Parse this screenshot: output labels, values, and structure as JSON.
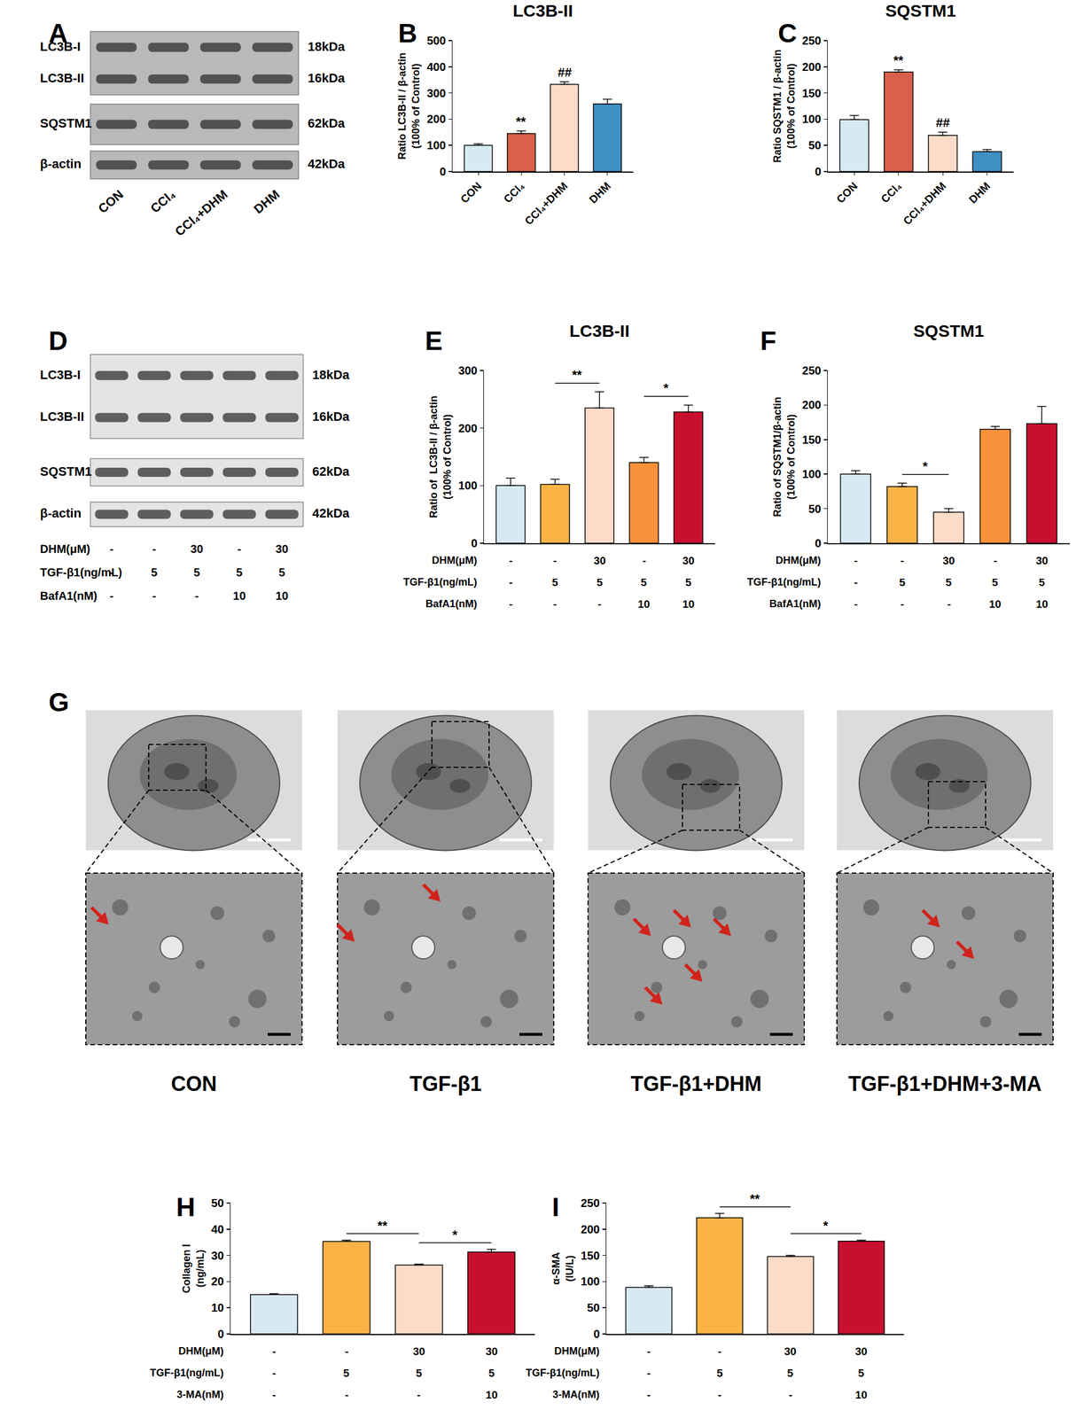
{
  "chart_data": [
    {
      "panel": "B",
      "type": "bar",
      "title": "LC3B-II",
      "y_label": "Ratio LC3B-II / β-actin\n(100% of Control)",
      "categories": [
        "CON",
        "CCl₄",
        "CCl₄+DHM",
        "DHM"
      ],
      "values": [
        100,
        145,
        333,
        258
      ],
      "errors": [
        6,
        10,
        10,
        18
      ],
      "colors": [
        "#d6e9f5",
        "#d9604a",
        "#fcdcc8",
        "#3f8fc4"
      ],
      "ylim": [
        0,
        500
      ],
      "yticks": [
        0,
        100,
        200,
        300,
        400,
        500
      ],
      "annotations": [
        {
          "text": "**",
          "category": "CCl₄"
        },
        {
          "text": "##",
          "category": "CCl₄+DHM"
        }
      ]
    },
    {
      "panel": "C",
      "type": "bar",
      "title": "SQSTM1",
      "y_label": "Ratio SQSTM1 / β-actin\n(100% of Control)",
      "categories": [
        "CON",
        "CCl₄",
        "CCl₄+DHM",
        "DHM"
      ],
      "values": [
        99,
        190,
        69,
        38
      ],
      "errors": [
        8,
        4,
        6,
        4
      ],
      "colors": [
        "#d6e9f5",
        "#d9604a",
        "#fcdcc8",
        "#3f8fc4"
      ],
      "ylim": [
        0,
        250
      ],
      "yticks": [
        0,
        50,
        100,
        150,
        200,
        250
      ],
      "annotations": [
        {
          "text": "**",
          "category": "CCl₄"
        },
        {
          "text": "##",
          "category": "CCl₄+DHM"
        }
      ]
    },
    {
      "panel": "E",
      "type": "bar",
      "title": "LC3B-II",
      "y_label": "Ratio of  LC3B-II / β-actin\n(100% of Control)",
      "categories": [
        null,
        null,
        null,
        null,
        null
      ],
      "values": [
        100,
        102,
        235,
        140,
        228
      ],
      "errors": [
        13,
        9,
        28,
        9,
        12
      ],
      "colors": [
        "#d6e9f5",
        "#fbb346",
        "#fcdcc8",
        "#f9913a",
        "#c8102e"
      ],
      "ylim": [
        0,
        300
      ],
      "yticks": [
        0,
        100,
        200,
        300
      ],
      "brackets": [
        {
          "from": 1,
          "to": 2,
          "text": "**"
        },
        {
          "from": 3,
          "to": 4,
          "text": "*"
        }
      ],
      "conditions": [
        {
          "label": "DHM(μM)",
          "values": [
            "-",
            "-",
            "30",
            "-",
            "30"
          ]
        },
        {
          "label": "TGF-β1(ng/mL)",
          "values": [
            "-",
            "5",
            "5",
            "5",
            "5"
          ]
        },
        {
          "label": "BafA1(nM)",
          "values": [
            "-",
            "-",
            "-",
            "10",
            "10"
          ]
        }
      ]
    },
    {
      "panel": "F",
      "type": "bar",
      "title": "SQSTM1",
      "y_label": "Ratio of SQSTM1/β-actin\n(100% of Control)",
      "categories": [
        null,
        null,
        null,
        null,
        null
      ],
      "values": [
        100,
        82,
        45,
        165,
        173
      ],
      "errors": [
        5,
        5,
        5,
        4,
        25
      ],
      "colors": [
        "#d6e9f5",
        "#fbb346",
        "#fcdcc8",
        "#f9913a",
        "#c8102e"
      ],
      "ylim": [
        0,
        250
      ],
      "yticks": [
        0,
        50,
        100,
        150,
        200,
        250
      ],
      "brackets": [
        {
          "from": 1,
          "to": 2,
          "text": "*"
        }
      ],
      "conditions": [
        {
          "label": "DHM(μM)",
          "values": [
            "-",
            "-",
            "30",
            "-",
            "30"
          ]
        },
        {
          "label": "TGF-β1(ng/mL)",
          "values": [
            "-",
            "5",
            "5",
            "5",
            "5"
          ]
        },
        {
          "label": "BafA1(nM)",
          "values": [
            "-",
            "-",
            "-",
            "10",
            "10"
          ]
        }
      ]
    },
    {
      "panel": "H",
      "type": "bar",
      "y_label": "Collagen Ⅰ\n(ng/mL)",
      "categories": [
        null,
        null,
        null,
        null
      ],
      "values": [
        15,
        35.3,
        26.3,
        31.3
      ],
      "errors": [
        0.4,
        0.5,
        0.4,
        1
      ],
      "colors": [
        "#d6e9f5",
        "#fbb346",
        "#fcdcc8",
        "#c8102e"
      ],
      "ylim": [
        0,
        50
      ],
      "yticks": [
        0,
        10,
        20,
        30,
        40,
        50
      ],
      "brackets": [
        {
          "from": 1,
          "to": 2,
          "text": "**"
        },
        {
          "from": 2,
          "to": 3,
          "text": "*"
        }
      ],
      "conditions": [
        {
          "label": "DHM(μM)",
          "values": [
            "-",
            "-",
            "30",
            "30"
          ]
        },
        {
          "label": "TGF-β1(ng/mL)",
          "values": [
            "-",
            "5",
            "5",
            "5"
          ]
        },
        {
          "label": "3-MA(nM)",
          "values": [
            "-",
            "-",
            "-",
            "10"
          ]
        }
      ]
    },
    {
      "panel": "I",
      "type": "bar",
      "y_label": "α-SMA\n(IU/L)",
      "categories": [
        null,
        null,
        null,
        null
      ],
      "values": [
        89,
        222,
        148,
        177
      ],
      "errors": [
        3,
        8,
        2,
        2
      ],
      "colors": [
        "#d6e9f5",
        "#fbb346",
        "#fcdcc8",
        "#c8102e"
      ],
      "ylim": [
        0,
        250
      ],
      "yticks": [
        0,
        50,
        100,
        150,
        200,
        250
      ],
      "brackets": [
        {
          "from": 1,
          "to": 2,
          "text": "**"
        },
        {
          "from": 2,
          "to": 3,
          "text": "*"
        }
      ],
      "conditions": [
        {
          "label": "DHM(μM)",
          "values": [
            "-",
            "-",
            "30",
            "30"
          ]
        },
        {
          "label": "TGF-β1(ng/mL)",
          "values": [
            "-",
            "5",
            "5",
            "5"
          ]
        },
        {
          "label": "3-MA(nM)",
          "values": [
            "-",
            "-",
            "-",
            "10"
          ]
        }
      ]
    }
  ],
  "blots": [
    {
      "panel": "A",
      "rows": [
        {
          "labels": [
            "LC3B-I",
            "LC3B-II"
          ],
          "sizes": [
            "18kDa",
            "16kDa"
          ]
        },
        {
          "labels": [
            "SQSTM1"
          ],
          "sizes": [
            "62kDa"
          ]
        },
        {
          "labels": [
            "β-actin"
          ],
          "sizes": [
            "42kDa"
          ]
        }
      ],
      "lanes": [
        "CON",
        "CCl₄",
        "CCl₄+DHM",
        "DHM"
      ]
    },
    {
      "panel": "D",
      "rows": [
        {
          "labels": [
            "LC3B-I",
            "LC3B-II"
          ],
          "sizes": [
            "18kDa",
            "16kDa"
          ]
        },
        {
          "labels": [
            "SQSTM1"
          ],
          "sizes": [
            "62kDa"
          ]
        },
        {
          "labels": [
            "β-actin"
          ],
          "sizes": [
            "42kDa"
          ]
        }
      ],
      "conditions": [
        {
          "label": "DHM(μM)",
          "values": [
            "-",
            "-",
            "30",
            "-",
            "30"
          ]
        },
        {
          "label": "TGF-β1(ng/mL)",
          "values": [
            "-",
            "5",
            "5",
            "5",
            "5"
          ]
        },
        {
          "label": "BafA1(nM)",
          "values": [
            "-",
            "-",
            "-",
            "10",
            "10"
          ]
        }
      ]
    }
  ],
  "micrographs": {
    "panel": "G",
    "groups": [
      "CON",
      "TGF-β1",
      "TGF-β1+DHM",
      "TGF-β1+DHM+3-MA"
    ]
  }
}
